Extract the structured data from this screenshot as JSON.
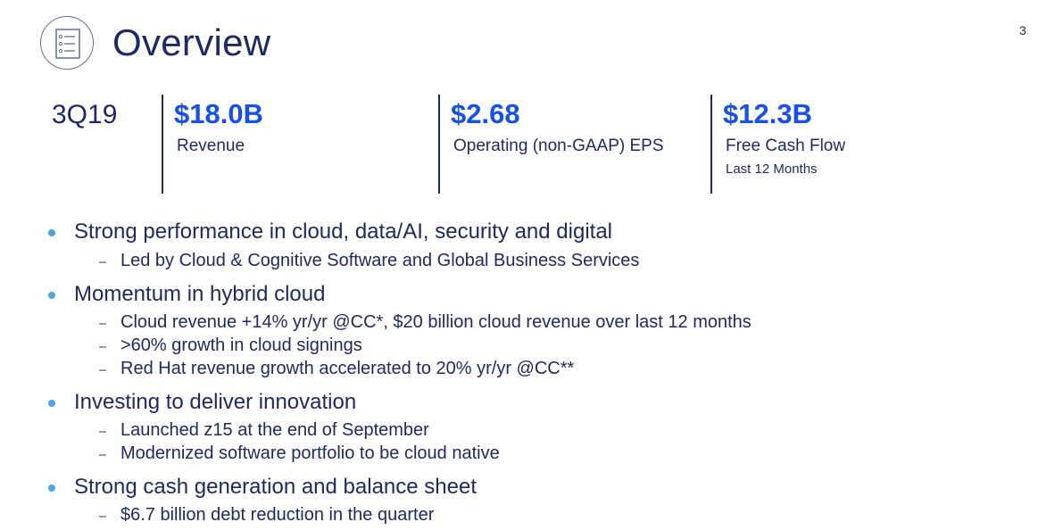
{
  "header": {
    "title": "Overview",
    "page_number": "3",
    "icon": "checklist-icon"
  },
  "metrics": {
    "period": "3Q19",
    "items": [
      {
        "value": "$18.0B",
        "label": "Revenue",
        "sublabel": ""
      },
      {
        "value": "$2.68",
        "label": "Operating (non-GAAP) EPS",
        "sublabel": ""
      },
      {
        "value": "$12.3B",
        "label": "Free Cash Flow",
        "sublabel": "Last 12 Months"
      }
    ]
  },
  "bullets": [
    {
      "text": "Strong performance in cloud, data/AI, security and digital",
      "subs": [
        "Led by Cloud & Cognitive Software and Global Business Services"
      ]
    },
    {
      "text": "Momentum in hybrid cloud",
      "subs": [
        "Cloud revenue +14% yr/yr @CC*, $20 billion cloud revenue over last 12 months",
        ">60% growth in cloud signings",
        "Red Hat revenue growth accelerated to 20% yr/yr @CC**"
      ]
    },
    {
      "text": "Investing to deliver innovation",
      "subs": [
        "Launched z15 at the end of September",
        "Modernized software portfolio to be cloud native"
      ]
    },
    {
      "text": "Strong cash generation and balance sheet",
      "subs": [
        "$6.7 billion debt reduction in the quarter"
      ]
    }
  ],
  "colors": {
    "title": "#1c2a66",
    "accent": "#1550e8",
    "bullet": "#4da3e8"
  }
}
